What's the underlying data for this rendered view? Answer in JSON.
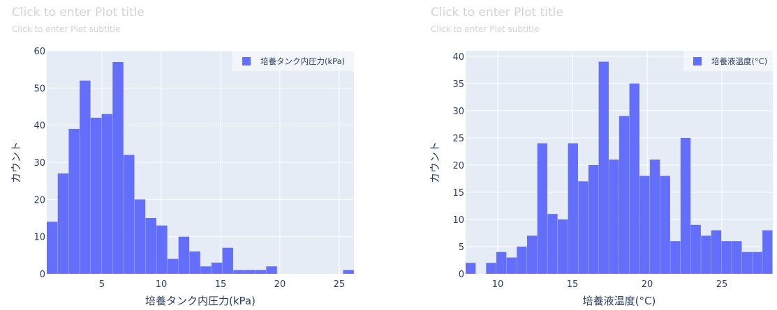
{
  "chart_data": [
    {
      "type": "bar",
      "histogram": true,
      "title": "Click to enter Plot title",
      "subtitle": "Click to enter Plot subtitle",
      "xlabel": "培養タンク内圧力(kPa)",
      "ylabel": "カウント",
      "legend": "培養タンク内圧力(kPa)",
      "legend_position": "top-right",
      "grid": true,
      "color": "#636efa",
      "xlim": [
        0.35,
        26.24
      ],
      "ylim": [
        0,
        60
      ],
      "xticks": [
        5,
        10,
        15,
        20,
        25
      ],
      "yticks": [
        0,
        10,
        20,
        30,
        40,
        50,
        60
      ],
      "bin_start": 0.35,
      "bin_width": 0.925,
      "values": [
        14,
        27,
        39,
        52,
        42,
        43,
        57,
        32,
        20,
        15,
        13,
        4,
        10,
        6,
        2,
        3,
        7,
        1,
        1,
        1,
        2,
        0,
        0,
        0,
        0,
        0,
        0,
        1
      ]
    },
    {
      "type": "bar",
      "histogram": true,
      "title": "Click to enter Plot title",
      "subtitle": "Click to enter Plot subtitle",
      "xlabel": "培養液温度(°C)",
      "ylabel": "カウント",
      "legend": "培養液温度(°C)",
      "legend_position": "top-right",
      "grid": true,
      "color": "#636efa",
      "xlim": [
        7.85,
        28.41
      ],
      "ylim": [
        0,
        41
      ],
      "xticks": [
        10,
        15,
        20,
        25
      ],
      "yticks": [
        0,
        5,
        10,
        15,
        20,
        25,
        30,
        35,
        40
      ],
      "bin_start": 7.85,
      "bin_width": 0.685,
      "values": [
        2,
        0,
        2,
        4,
        3,
        5,
        7,
        24,
        11,
        10,
        24,
        17,
        20,
        39,
        21,
        29,
        35,
        18,
        21,
        18,
        6,
        25,
        9,
        7,
        8,
        6,
        6,
        4,
        4,
        8
      ]
    }
  ]
}
